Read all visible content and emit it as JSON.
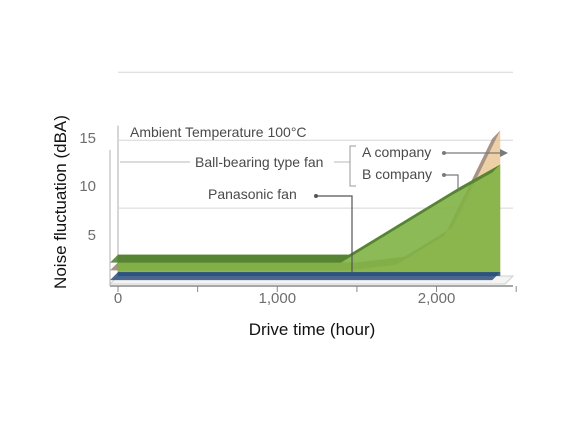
{
  "chart_data": {
    "type": "area",
    "style": "3d-pseudo",
    "xlabel": "Drive time (hour)",
    "ylabel": "Noise fluctuation (dBA)",
    "x_ticks": [
      0,
      1000,
      2000
    ],
    "x_tick_labels": [
      "0",
      "1,000",
      "2,000"
    ],
    "y_ticks": [
      5,
      10,
      15
    ],
    "y_tick_labels": [
      "5",
      "10",
      "15"
    ],
    "xlim": [
      0,
      2500
    ],
    "ylim": [
      0,
      16
    ],
    "grid": true,
    "series": [
      {
        "name": "A company",
        "color": "#e8c08a",
        "x": [
          0,
          1000,
          1500,
          1800,
          2100,
          2400
        ],
        "y": [
          1.4,
          1.4,
          1.4,
          2.0,
          5.0,
          15.0
        ]
      },
      {
        "name": "B company",
        "color": "#7fb244",
        "x": [
          0,
          1000,
          1450,
          1750,
          2150,
          2400
        ],
        "y": [
          2.2,
          2.2,
          2.2,
          5.2,
          9.2,
          11.5
        ]
      },
      {
        "name": "Panasonic fan",
        "color": "#3f6596",
        "x": [
          0,
          2400
        ],
        "y": [
          0.4,
          0.4
        ]
      }
    ],
    "annotations": {
      "ambient": "Ambient Temperature 100°C",
      "ball_bearing": "Ball-bearing type fan",
      "a_company": "A company",
      "b_company": "B company",
      "panasonic": "Panasonic fan"
    }
  }
}
